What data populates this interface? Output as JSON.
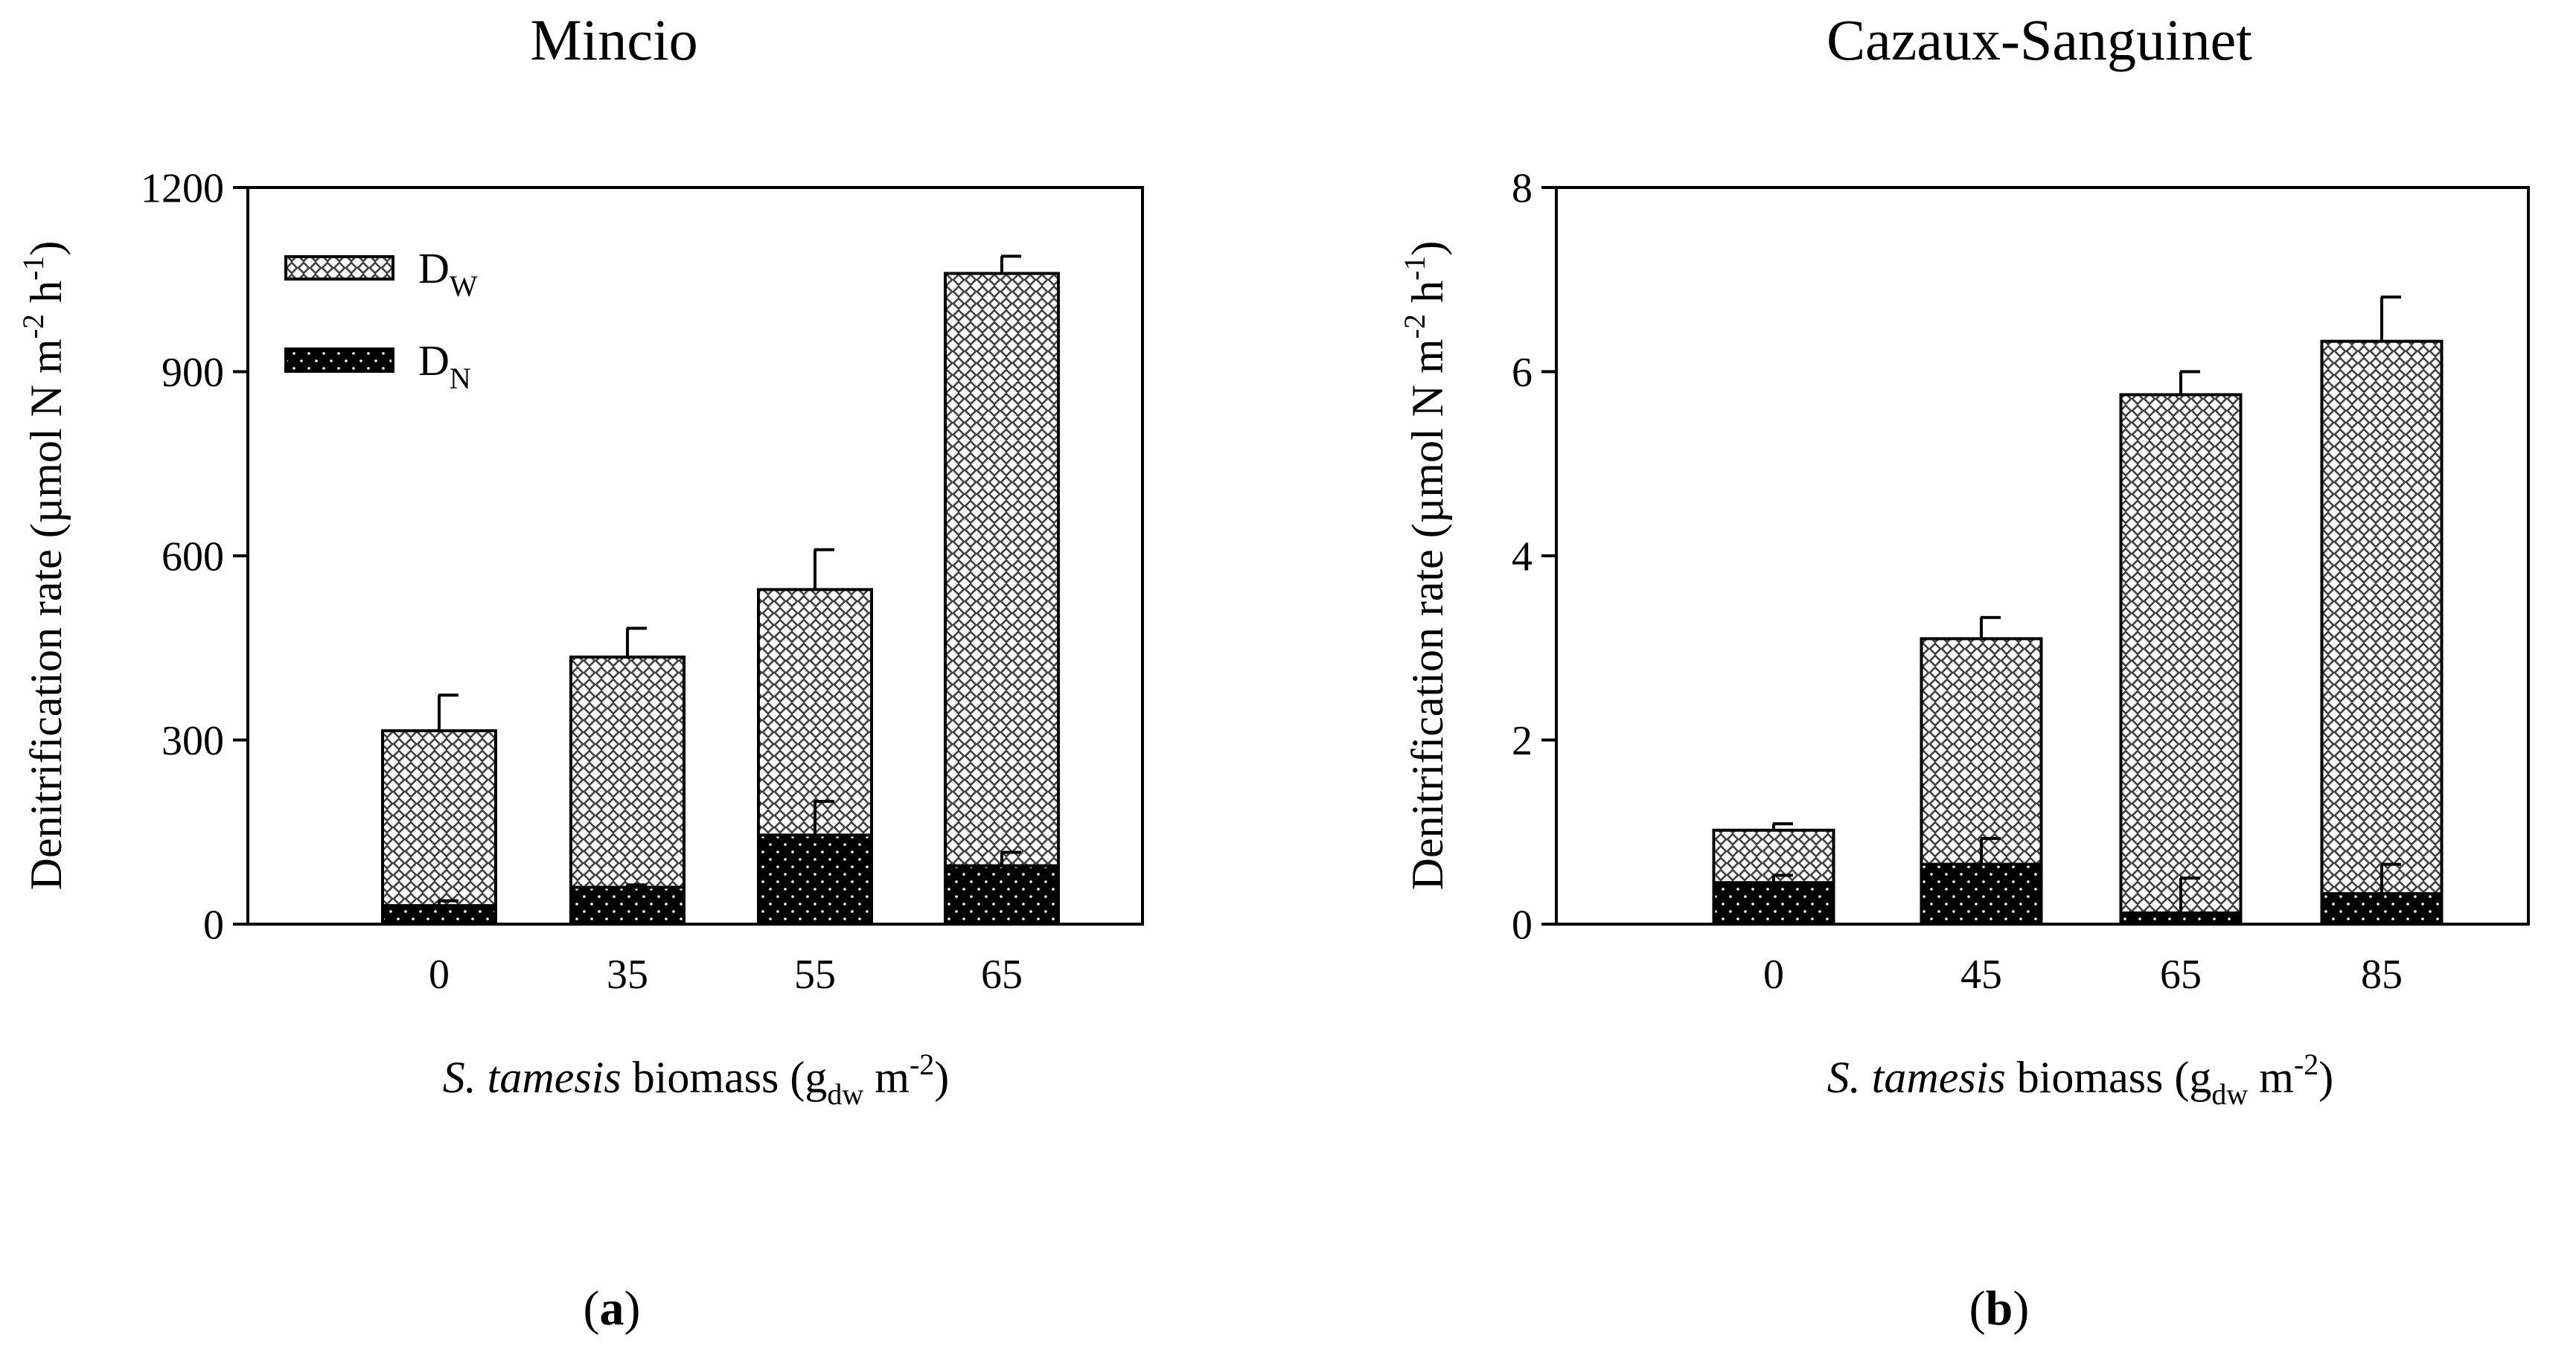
{
  "figure": {
    "panels": [
      {
        "panel_label_open": "(",
        "panel_letter": "a",
        "panel_label_close": ")",
        "ylabel_main": "Denitrification rate (µmol N m",
        "ylabel_sup1": "-2",
        "ylabel_mid": " h",
        "ylabel_sup2": "-1",
        "ylabel_end": ")",
        "xlabel_italic": "S. tamesis",
        "xlabel_main": " biomass (g",
        "xlabel_sub": "dw",
        "xlabel_mid": " m",
        "xlabel_sup": "-2",
        "xlabel_end": ")"
      },
      {
        "panel_label_open": "(",
        "panel_letter": "b",
        "panel_label_close": ")",
        "ylabel_main": "Denitrification rate (µmol N m",
        "ylabel_sup1": "-2",
        "ylabel_mid": " h",
        "ylabel_sup2": "-1",
        "ylabel_end": ")",
        "xlabel_italic": "S. tamesis",
        "xlabel_main": " biomass (g",
        "xlabel_sub": "dw",
        "xlabel_mid": " m",
        "xlabel_sup": "-2",
        "xlabel_end": ")"
      }
    ]
  },
  "colors": {
    "dw_fill": "#ffffff",
    "dw_pattern": "#404040",
    "dn_fill": "#000000",
    "dn_dots": "#ffffff",
    "axis": "#000000"
  },
  "chart_data": [
    {
      "type": "bar",
      "stacked": true,
      "title": "Mincio",
      "categories": [
        "0",
        "35",
        "55",
        "65"
      ],
      "series": [
        {
          "name": "D",
          "name_sub": "N",
          "values": [
            30,
            60,
            145,
            95
          ],
          "errors": [
            8,
            4,
            55,
            22
          ]
        },
        {
          "name": "D",
          "name_sub": "W",
          "values": [
            285,
            375,
            400,
            965
          ],
          "errors": [
            58,
            47,
            65,
            28
          ]
        }
      ],
      "ylim": [
        0,
        1200
      ],
      "yticks": [
        "0",
        "300",
        "600",
        "900",
        "1200"
      ],
      "legend": "top-left",
      "grid": false
    },
    {
      "type": "bar",
      "stacked": true,
      "title": "Cazaux-Sanguinet",
      "categories": [
        "0",
        "45",
        "65",
        "85"
      ],
      "series": [
        {
          "name": "D",
          "name_sub": "N",
          "values": [
            0.45,
            0.65,
            0.12,
            0.33
          ],
          "errors": [
            0.08,
            0.28,
            0.38,
            0.32
          ]
        },
        {
          "name": "D",
          "name_sub": "W",
          "values": [
            0.57,
            2.45,
            5.63,
            6.0
          ],
          "errors": [
            0.07,
            0.23,
            0.25,
            0.48
          ]
        }
      ],
      "ylim": [
        0,
        8
      ],
      "yticks": [
        "0",
        "2",
        "4",
        "6",
        "8"
      ],
      "legend": "none",
      "grid": false
    }
  ]
}
